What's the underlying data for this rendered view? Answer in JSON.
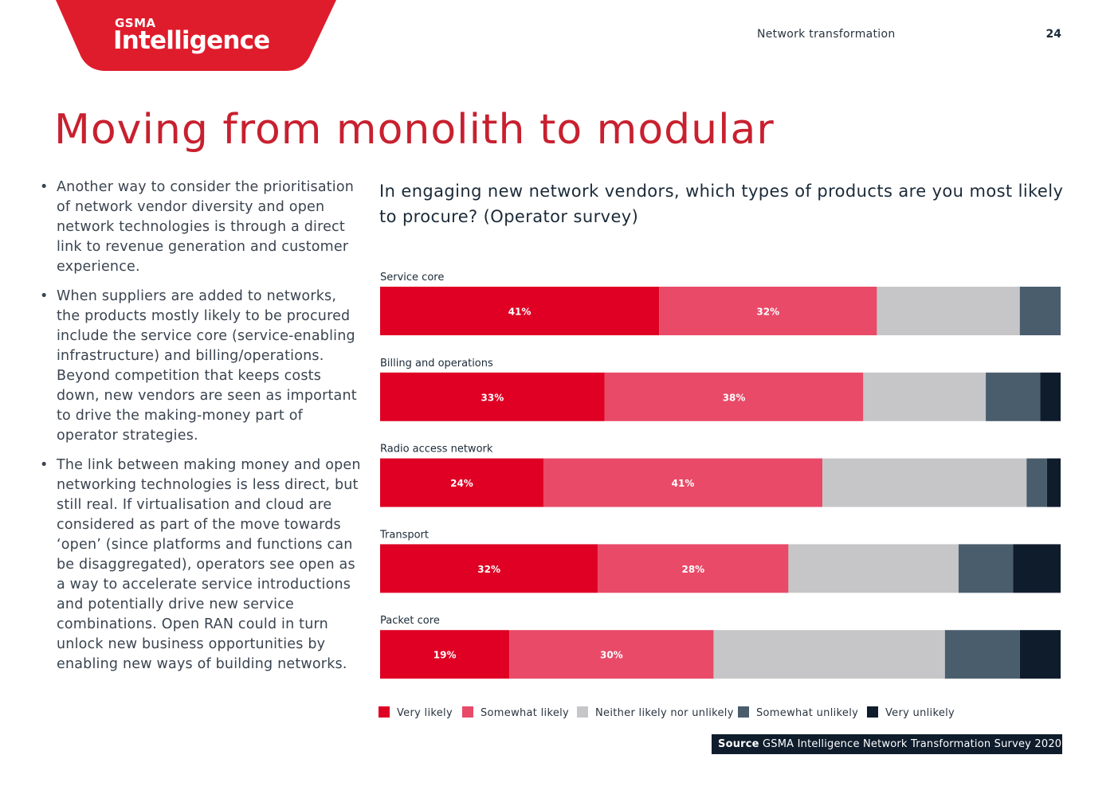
{
  "brand": {
    "small": "GSMA",
    "name": "Intelligence",
    "color": "#df1c2c"
  },
  "header": {
    "section": "Network transformation",
    "page": "24"
  },
  "page_title": "Moving from monolith to modular",
  "bullets": [
    "Another way to consider the prioritisation of network vendor diversity and open network technologies is through a direct link to revenue generation and customer experience.",
    "When suppliers are added to networks, the products mostly likely to be procured include the service core (service-enabling infrastructure) and billing/operations. Beyond competition that keeps costs down, new vendors are seen as important to drive the making-money part of operator strategies.",
    "The link between making money and open networking technologies is less direct, but still real. If virtualisation and cloud are considered as part of the move towards ‘open’ (since platforms and functions can be disaggregated), operators see open as a way to accelerate service introductions and potentially drive new service combinations. Open RAN could in turn unlock new business opportunities by enabling new ways of building networks."
  ],
  "chart_data": {
    "type": "bar",
    "orientation": "horizontal",
    "stacked": true,
    "normalized_to": 100,
    "title": "In engaging new network vendors, which types of products are you most likely to procure? (Operator survey)",
    "categories": [
      "Service core",
      "Billing and operations",
      "Radio access network",
      "Transport",
      "Packet core"
    ],
    "series": [
      {
        "name": "Very likely",
        "color": "#df0024",
        "values": [
          41,
          33,
          24,
          32,
          19
        ],
        "labels": [
          "41%",
          "33%",
          "24%",
          "32%",
          "19%"
        ]
      },
      {
        "name": "Somewhat likely",
        "color": "#e84a68",
        "values": [
          32,
          38,
          41,
          28,
          30
        ],
        "labels": [
          "32%",
          "38%",
          "41%",
          "28%",
          "30%"
        ]
      },
      {
        "name": "Neither likely nor unlikely",
        "color": "#c6c6c8",
        "values": [
          21,
          18,
          30,
          25,
          34
        ]
      },
      {
        "name": "Somewhat unlikely",
        "color": "#4a5d6d",
        "values": [
          6,
          8,
          3,
          8,
          11
        ]
      },
      {
        "name": "Very unlikely",
        "color": "#0f1c2c",
        "values": [
          0,
          3,
          2,
          7,
          6
        ]
      }
    ],
    "legend_position": "bottom",
    "xlim": [
      0,
      100
    ]
  },
  "source": {
    "label": "Source",
    "text": "GSMA Intelligence Network Transformation Survey 2020"
  }
}
